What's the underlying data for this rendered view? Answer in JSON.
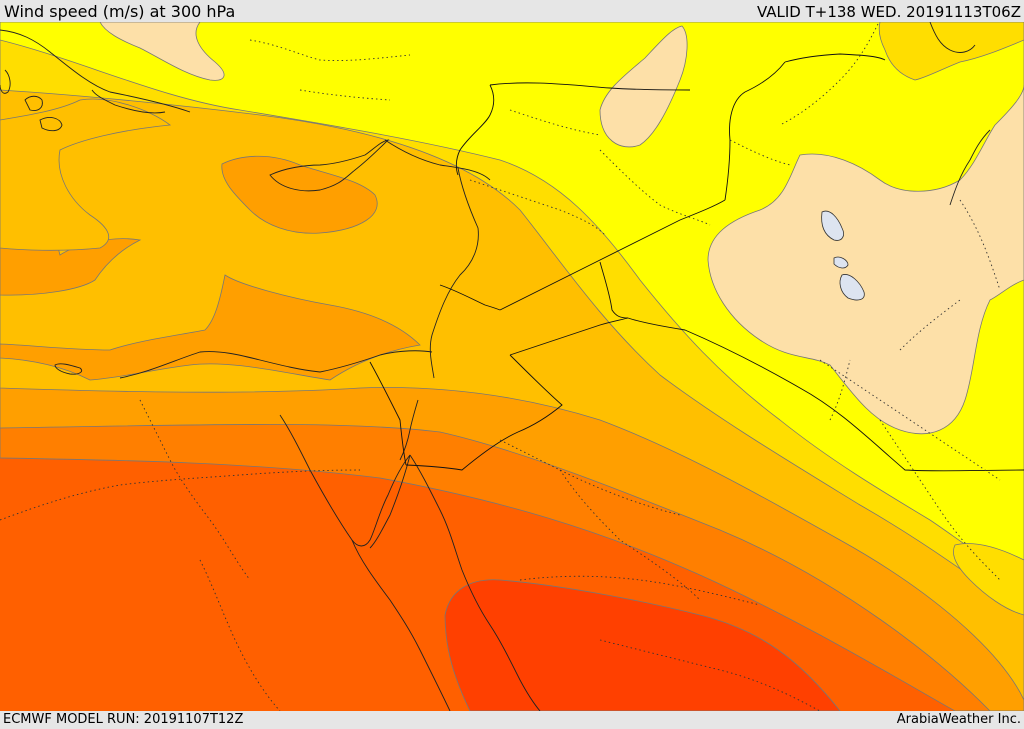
{
  "header": {
    "title": "Wind speed (m/s) at 300 hPa",
    "valid_time": "VALID T+138 WED. 20191113T06Z"
  },
  "footer": {
    "model_run": "ECMWF MODEL RUN: 20191107T12Z",
    "credit": "ArabiaWeather Inc."
  },
  "map": {
    "region": "Eastern Mediterranean, Egypt, Levant, Arabian Peninsula",
    "colors": {
      "pale_peach": "#fde0a8",
      "yellow": "#ffff00",
      "gold": "#ffde00",
      "light_orange": "#ffbf00",
      "orange": "#ff9f00",
      "dark_orange": "#ff7f00",
      "red_orange": "#ff6000",
      "red": "#ff4000",
      "lake": "#dde4f0"
    }
  }
}
